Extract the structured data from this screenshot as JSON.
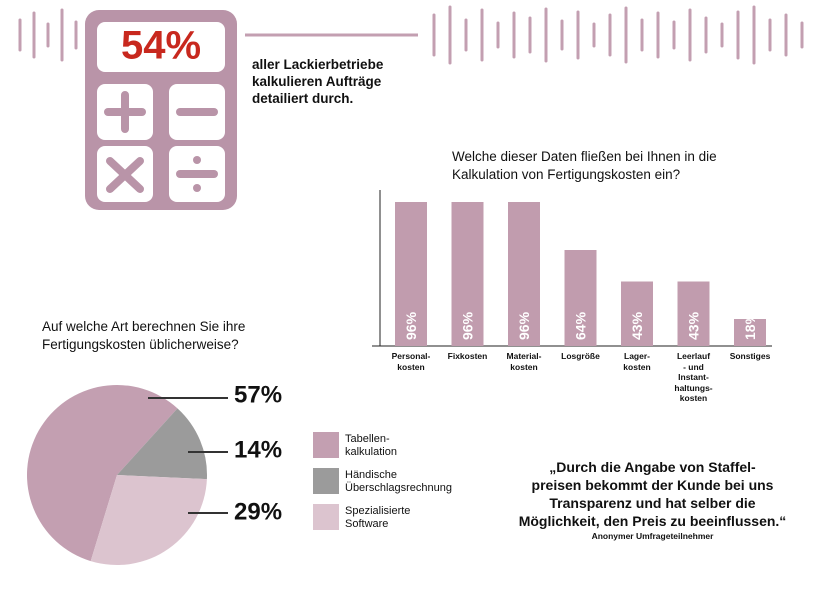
{
  "stat": {
    "value_label": "54%",
    "text": "aller Lackierbetriebe\nkalkulieren Aufträge\ndetailiert durch."
  },
  "chart_data": [
    {
      "type": "bar",
      "title": "Welche dieser Daten fließen bei Ihnen in die\nKalkulation von Fertigungskosten ein?",
      "categories": [
        "Personal-\nkosten",
        "Fixkosten",
        "Material-\nkosten",
        "Losgröße",
        "Lager-\nkosten",
        "Leerlauf\n- und\nInstant-\nhaltungs-\nkosten",
        "Sonstiges"
      ],
      "values": [
        96,
        96,
        96,
        64,
        43,
        43,
        18
      ],
      "value_labels": [
        "96%",
        "96%",
        "96%",
        "64%",
        "43%",
        "43%",
        "18%"
      ],
      "color": "#c19cae"
    },
    {
      "type": "pie",
      "title": "Auf welche Art berechnen Sie ihre\nFertigungskosten üblicherweise?",
      "categories": [
        "Tabellen-\nkalkulation",
        "Händische\nÜberschlagsrechnung",
        "Spezialisierte\nSoftware"
      ],
      "values": [
        57,
        14,
        29
      ],
      "value_labels": [
        "57%",
        "14%",
        "29%"
      ],
      "colors": [
        "#c39fb1",
        "#9b9b9b",
        "#dcc4cf"
      ]
    }
  ],
  "quote": {
    "text": "„Durch die Angabe von Staffel-\npreisen bekommt der Kunde bei uns\nTransparenz und hat selber die\nMöglichkeit, den Preis zu beeinflussen.“",
    "author": "Anonymer Umfrageteilnehmer"
  }
}
